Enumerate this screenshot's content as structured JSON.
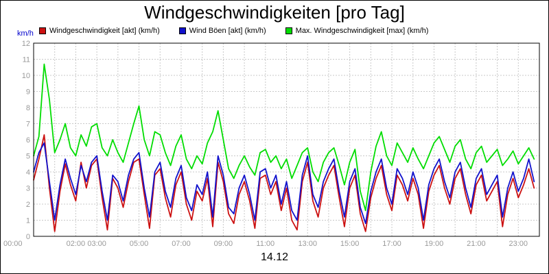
{
  "chart_data": {
    "type": "line",
    "title": "Windgeschwindigkeiten [pro Tag]",
    "xlabel": "14.12",
    "ylabel": "km/h",
    "ylim": [
      0,
      12
    ],
    "xlim_hours": [
      0,
      24
    ],
    "grid": true,
    "legend_position": "top",
    "y_ticks": [
      0,
      1,
      2,
      3,
      4,
      5,
      6,
      7,
      8,
      9,
      10,
      11,
      12
    ],
    "x_ticks": [
      {
        "hour": 0,
        "label": "00:00"
      },
      {
        "hour": 2,
        "label": "02:00"
      },
      {
        "hour": 3,
        "label": "03:00"
      },
      {
        "hour": 5,
        "label": "05:00"
      },
      {
        "hour": 7,
        "label": "07:00"
      },
      {
        "hour": 9,
        "label": "09:00"
      },
      {
        "hour": 11,
        "label": "11:00"
      },
      {
        "hour": 13,
        "label": "13:00"
      },
      {
        "hour": 15,
        "label": "15:00"
      },
      {
        "hour": 17,
        "label": "17:00"
      },
      {
        "hour": 19,
        "label": "19:00"
      },
      {
        "hour": 21,
        "label": "21:00"
      },
      {
        "hour": 23,
        "label": "23:00"
      }
    ],
    "x_step_hours": 0.25,
    "series": [
      {
        "name": "Windgeschwindigkeit [akt] (km/h)",
        "color": "#cc1111",
        "values": [
          3.5,
          4.8,
          6.3,
          3.0,
          0.3,
          2.8,
          4.5,
          3.2,
          2.2,
          4.6,
          3.0,
          4.4,
          4.8,
          2.4,
          0.4,
          3.6,
          3.0,
          1.8,
          3.4,
          4.6,
          4.8,
          2.6,
          0.5,
          3.8,
          4.2,
          2.4,
          1.2,
          3.2,
          4.0,
          2.0,
          1.0,
          2.8,
          2.2,
          3.6,
          0.6,
          4.6,
          3.4,
          1.4,
          0.8,
          2.6,
          3.4,
          2.2,
          0.5,
          3.6,
          3.8,
          2.6,
          3.4,
          1.6,
          3.0,
          1.0,
          0.4,
          3.4,
          4.6,
          2.2,
          1.2,
          3.0,
          3.8,
          4.4,
          2.4,
          0.6,
          3.0,
          3.8,
          1.4,
          0.3,
          2.4,
          3.6,
          4.4,
          2.6,
          1.6,
          3.8,
          3.2,
          2.2,
          3.6,
          2.6,
          0.5,
          2.8,
          3.8,
          4.4,
          3.0,
          2.0,
          3.6,
          4.2,
          2.6,
          1.4,
          3.2,
          3.8,
          2.2,
          2.8,
          3.4,
          0.6,
          2.6,
          3.6,
          2.4,
          3.2,
          4.2,
          3.0
        ]
      },
      {
        "name": "Wind Böen [akt] (km/h)",
        "color": "#1111cc",
        "values": [
          4.0,
          5.2,
          5.8,
          3.4,
          1.0,
          3.2,
          4.8,
          3.6,
          2.6,
          4.4,
          3.4,
          4.6,
          5.0,
          2.8,
          1.0,
          3.8,
          3.4,
          2.2,
          3.8,
          4.8,
          5.2,
          3.0,
          1.2,
          4.0,
          4.6,
          2.8,
          1.8,
          3.6,
          4.4,
          2.4,
          1.6,
          3.2,
          2.6,
          4.0,
          1.2,
          5.0,
          3.8,
          1.8,
          1.4,
          3.0,
          3.8,
          2.6,
          1.0,
          4.0,
          4.2,
          3.0,
          3.8,
          2.0,
          3.4,
          1.6,
          1.0,
          3.8,
          5.0,
          2.6,
          1.8,
          3.4,
          4.2,
          4.8,
          2.8,
          1.2,
          3.4,
          4.2,
          1.8,
          0.8,
          2.8,
          4.0,
          4.8,
          3.0,
          2.0,
          4.2,
          3.6,
          2.6,
          4.0,
          3.0,
          1.0,
          3.2,
          4.2,
          4.8,
          3.4,
          2.4,
          4.0,
          4.6,
          3.0,
          1.8,
          3.6,
          4.2,
          2.6,
          3.2,
          3.8,
          1.2,
          3.0,
          4.0,
          2.8,
          3.6,
          4.8,
          3.4
        ]
      },
      {
        "name": "Max. Windgeschwindigkeit [max] (km/h)",
        "color": "#00dd00",
        "values": [
          5.0,
          6.2,
          10.7,
          8.5,
          5.2,
          6.0,
          7.0,
          5.5,
          5.0,
          6.3,
          5.6,
          6.8,
          7.0,
          5.5,
          5.0,
          6.0,
          5.2,
          4.6,
          5.8,
          7.0,
          8.1,
          6.0,
          5.0,
          6.5,
          6.3,
          5.2,
          4.4,
          5.6,
          6.3,
          4.8,
          4.2,
          5.0,
          4.5,
          5.8,
          6.5,
          7.8,
          6.0,
          4.2,
          3.6,
          4.4,
          5.0,
          4.3,
          3.8,
          5.2,
          5.4,
          4.6,
          5.0,
          4.2,
          4.8,
          3.6,
          4.4,
          5.2,
          5.5,
          4.0,
          3.4,
          4.6,
          5.2,
          5.5,
          4.4,
          3.2,
          4.6,
          5.4,
          2.8,
          1.6,
          4.0,
          5.6,
          6.5,
          5.0,
          4.4,
          5.8,
          5.2,
          4.6,
          5.5,
          4.8,
          4.2,
          5.0,
          5.8,
          6.2,
          5.4,
          4.6,
          5.6,
          6.0,
          4.8,
          4.2,
          5.2,
          5.6,
          4.6,
          5.0,
          5.4,
          4.4,
          4.8,
          5.3,
          4.5,
          5.0,
          5.5,
          4.8
        ]
      }
    ],
    "colors": {
      "grid": "#c8c8c8",
      "axis_border": "#000000",
      "tick_text": "#999999",
      "ylabel_text": "#0000cc",
      "plot_bg": "#ffffff"
    }
  }
}
